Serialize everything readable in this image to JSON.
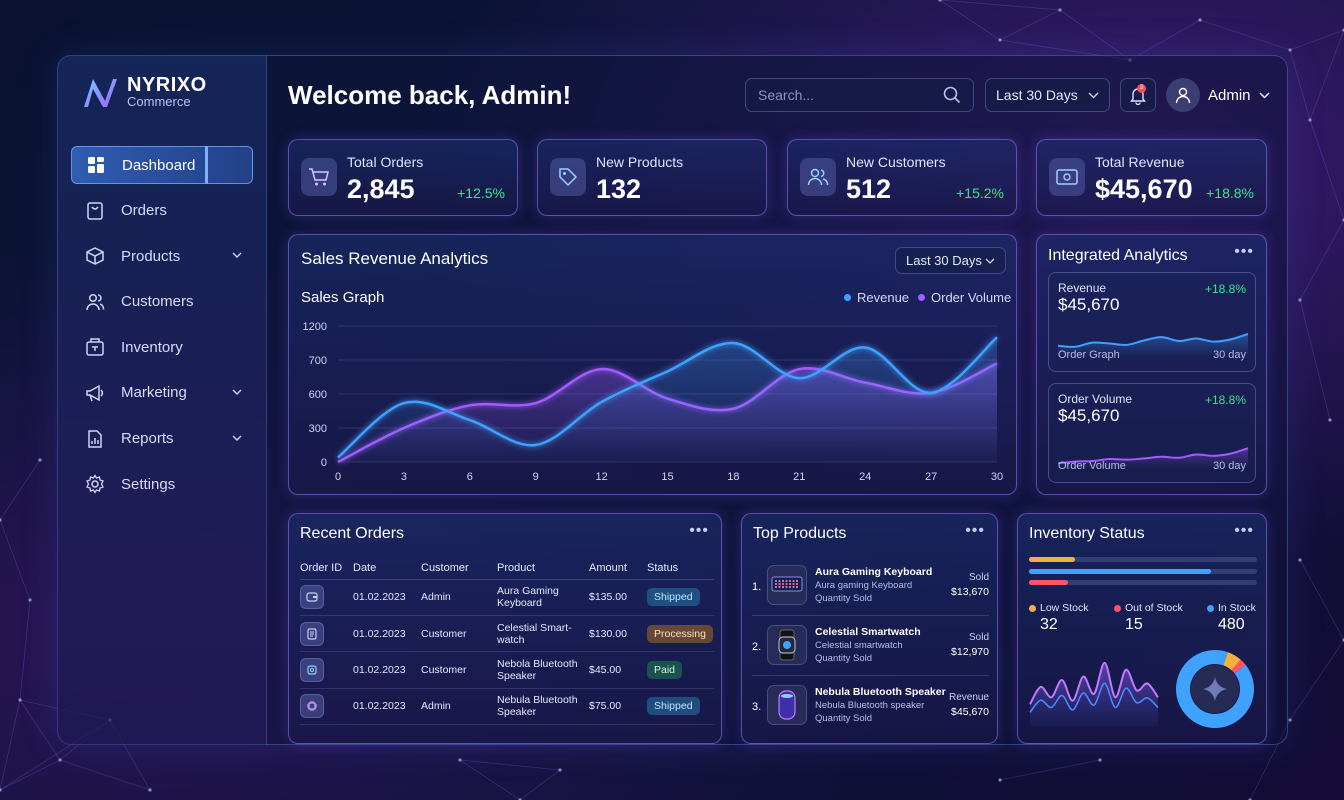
{
  "brand": {
    "name": "NYRIXO",
    "sub": "Commerce"
  },
  "sidebar": {
    "items": [
      {
        "label": "Dashboard",
        "icon": "dashboard-icon",
        "active": true,
        "expandable": false
      },
      {
        "label": "Orders",
        "icon": "orders-icon",
        "active": false,
        "expandable": false
      },
      {
        "label": "Products",
        "icon": "box-icon",
        "active": false,
        "expandable": true
      },
      {
        "label": "Customers",
        "icon": "users-icon",
        "active": false,
        "expandable": false
      },
      {
        "label": "Inventory",
        "icon": "inventory-icon",
        "active": false,
        "expandable": false
      },
      {
        "label": "Marketing",
        "icon": "megaphone-icon",
        "active": false,
        "expandable": true
      },
      {
        "label": "Reports",
        "icon": "reports-icon",
        "active": false,
        "expandable": true
      },
      {
        "label": "Settings",
        "icon": "gear-icon",
        "active": false,
        "expandable": false
      }
    ]
  },
  "header": {
    "title": "Welcome back, Admin!",
    "search_placeholder": "Search...",
    "range": "Last 30 Days",
    "notifications": "3",
    "user": "Admin"
  },
  "kpis": [
    {
      "label": "Total Orders",
      "value": "2,845",
      "change": "+12.5%",
      "icon": "cart-icon"
    },
    {
      "label": "New Products",
      "value": "132",
      "change": "",
      "icon": "tag-icon"
    },
    {
      "label": "New Customers",
      "value": "512",
      "change": "+15.2%",
      "icon": "users-icon"
    },
    {
      "label": "Total Revenue",
      "value": "$45,670",
      "change": "+18.8%",
      "icon": "cash-icon"
    }
  ],
  "sales": {
    "title": "Sales Revenue Analytics",
    "range": "Last 30 Days",
    "graph_title": "Sales Graph",
    "legend": [
      {
        "name": "Revenue",
        "color": "#3fa2ff"
      },
      {
        "name": "Order Volume",
        "color": "#a45cff"
      }
    ]
  },
  "chart_data": {
    "type": "line",
    "x": [
      0,
      3,
      6,
      9,
      12,
      15,
      18,
      21,
      24,
      27,
      30
    ],
    "xticks": [
      "0",
      "3",
      "6",
      "9",
      "12",
      "15",
      "18",
      "21",
      "24",
      "27",
      "30"
    ],
    "yticks": [
      "0",
      "300",
      "600",
      "700",
      "1200"
    ],
    "series": [
      {
        "name": "Revenue",
        "values": [
          40,
          520,
          370,
          150,
          530,
          800,
          1050,
          740,
          1010,
          610,
          1100
        ]
      },
      {
        "name": "Order Volume",
        "values": [
          0,
          300,
          500,
          520,
          820,
          560,
          470,
          820,
          700,
          610,
          870
        ]
      }
    ],
    "ylim": [
      0,
      1200
    ],
    "grid": true,
    "legend": "top-right"
  },
  "integrated": {
    "title": "Integrated Analytics",
    "cards": [
      {
        "label": "Revenue",
        "value": "$45,670",
        "change": "+18.8%",
        "footer": "Order Graph",
        "period": "30 day",
        "color": "#3fa2ff",
        "trend": [
          0.35,
          0.32,
          0.45,
          0.42,
          0.38,
          0.52,
          0.62,
          0.5,
          0.58,
          0.48,
          0.55,
          0.72
        ]
      },
      {
        "label": "Order Volume",
        "value": "$45,670",
        "change": "+18.8%",
        "footer": "Order Volume",
        "period": "30 day",
        "color": "#a45cff",
        "trend": [
          0.15,
          0.2,
          0.22,
          0.28,
          0.26,
          0.3,
          0.35,
          0.32,
          0.42,
          0.38,
          0.45,
          0.62
        ]
      }
    ]
  },
  "orders": {
    "title": "Recent Orders",
    "columns": [
      "Order ID",
      "Date",
      "Customer",
      "Product",
      "Amount",
      "Status"
    ],
    "rows": [
      {
        "icon": "wallet-icon",
        "date": "01.02.2023",
        "customer": "Admin",
        "product": "Aura Gaming Keyboard",
        "amount": "$135.00",
        "status": "Shipped",
        "cls": "shipped"
      },
      {
        "icon": "receipt-icon",
        "date": "01.02.2023",
        "customer": "Customer",
        "product": "Celestial Smart-watch",
        "amount": "$130.00",
        "status": "Processing",
        "cls": "processing"
      },
      {
        "icon": "watch-icon",
        "date": "01.02.2023",
        "customer": "Customer",
        "product": "Nebola Bluetooth Speaker",
        "amount": "$45.00",
        "status": "Paid",
        "cls": "paid"
      },
      {
        "icon": "chip-icon",
        "date": "01.02.2023",
        "customer": "Admin",
        "product": "Nebula Bluetooth Speaker",
        "amount": "$75.00",
        "status": "Shipped",
        "cls": "shipped"
      }
    ]
  },
  "top_products": {
    "title": "Top Products",
    "items": [
      {
        "rank": "1.",
        "name": "Aura Gaming Keyboard",
        "desc": "Aura gaming Keyboard",
        "qty": "Quantity Sold",
        "metric": "Sold",
        "value": "$13,670",
        "icon": "keyboard-icon"
      },
      {
        "rank": "2.",
        "name": "Celestial Smartwatch",
        "desc": "Celestial smartwatch",
        "qty": "Quantity Sold",
        "metric": "Sold",
        "value": "$12,970",
        "icon": "smartwatch-icon"
      },
      {
        "rank": "3.",
        "name": "Nebula Bluetooth Speaker",
        "desc": "Nebula Bluetooth speaker",
        "qty": "Quantity Sold",
        "metric": "Revenue",
        "value": "$45,670",
        "icon": "speaker-icon"
      }
    ]
  },
  "inventory": {
    "title": "Inventory Status",
    "bars": [
      {
        "fill": 0.2,
        "color": "#f5b041"
      },
      {
        "fill": 0.8,
        "color": "#3fa2ff"
      },
      {
        "fill": 0.17,
        "color": "#ff5466"
      }
    ],
    "legend": [
      {
        "label": "Low Stock",
        "value": "32",
        "color": "#f5b041"
      },
      {
        "label": "Out of Stock",
        "value": "15",
        "color": "#ff5466"
      },
      {
        "label": "In Stock",
        "value": "480",
        "color": "#3fa2ff"
      }
    ],
    "wave": [
      0.2,
      0.45,
      0.3,
      0.55,
      0.25,
      0.6,
      0.35,
      0.8,
      0.3,
      0.7,
      0.4,
      0.5,
      0.3
    ],
    "donut": [
      {
        "value": 480,
        "color": "#3fa2ff"
      },
      {
        "value": 32,
        "color": "#f5b041"
      },
      {
        "value": 15,
        "color": "#ff5466"
      }
    ]
  }
}
